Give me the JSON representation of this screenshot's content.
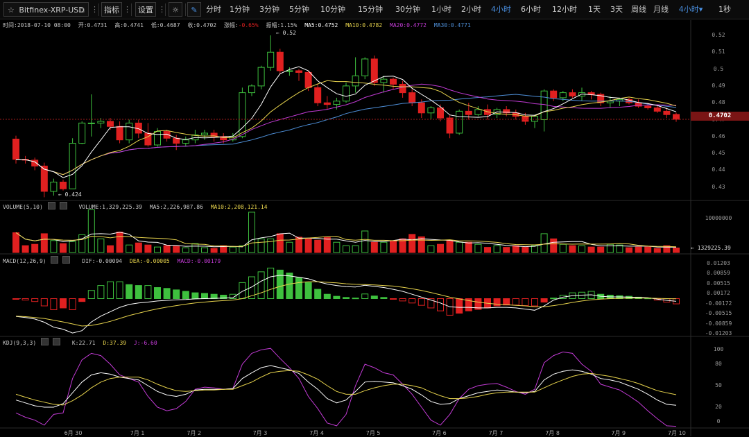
{
  "symbol": {
    "name": "Bitfinex-XRP-USD"
  },
  "toolbar": {
    "indicators": "指标",
    "settings": "设置",
    "refresh": "1秒"
  },
  "periods": [
    {
      "label": "分时",
      "active": false
    },
    {
      "label": "1分钟",
      "active": false
    },
    {
      "label": "3分钟",
      "active": false
    },
    {
      "label": "5分钟",
      "active": false
    },
    {
      "label": "10分钟",
      "active": false
    },
    {
      "label": "15分钟",
      "active": false
    },
    {
      "label": "30分钟",
      "active": false
    },
    {
      "label": "1小时",
      "active": false
    },
    {
      "label": "2小时",
      "active": false
    },
    {
      "label": "4小时",
      "active": true
    },
    {
      "label": "6小时",
      "active": false
    },
    {
      "label": "12小时",
      "active": false
    },
    {
      "label": "1天",
      "active": false
    },
    {
      "label": "3天",
      "active": false
    },
    {
      "label": "周线",
      "active": false
    },
    {
      "label": "月线",
      "active": false
    },
    {
      "label": "4小时▾",
      "active": true
    }
  ],
  "info": {
    "time": "时间:2018-07-10 08:00",
    "open": "开:0.4731",
    "high": "高:0.4741",
    "low": "低:0.4687",
    "close": "收:0.4702",
    "change_label": "涨幅:",
    "change_value": "-0.65%",
    "amplitude": "振幅:1.15%",
    "ma5": "MA5:0.4752",
    "ma10": "MA10:0.4782",
    "ma20": "MA20:0.4772",
    "ma30": "MA30:0.4771"
  },
  "volume_info": {
    "title": "VOLUME(5,10)",
    "volume": "VOLUME:1,329,225.39",
    "ma5": "MA5:2,226,987.86",
    "ma10": "MA10:2,208,121.14"
  },
  "macd_info": {
    "title": "MACD(12,26,9)",
    "dif": "DIF:-0.00094",
    "dea": "DEA:-0.00005",
    "macd": "MACD:-0.00179"
  },
  "kdj_info": {
    "title": "KDJ(9,3,3)",
    "k": "K:22.71",
    "d": "D:37.39",
    "j": "J:-6.60"
  },
  "annotations": {
    "high": "← 0.52",
    "low": "← 0.424",
    "volume_last": "← 1329225.39"
  },
  "last_price": "0.4702",
  "colors": {
    "up": "#3ec03e",
    "down": "#e02020",
    "ma5": "#ffffff",
    "ma10": "#e8d44d",
    "ma20": "#c33bd6",
    "ma30": "#4e8fd8",
    "accent": "#4a90e2"
  },
  "chart_data": [
    {
      "type": "candlestick",
      "title": "Bitfinex-XRP-USD 4小时",
      "y_ticks": [
        "0.52",
        "0.51",
        "0.5",
        "0.49",
        "0.48",
        "0.47",
        "0.46",
        "0.45",
        "0.44",
        "0.43"
      ],
      "ylim": [
        0.4225,
        0.5245
      ],
      "x_labels": [
        "6月 30",
        "7月 1",
        "7月 2",
        "7月 3",
        "7月 4",
        "7月 5",
        "7月 6",
        "7月 7",
        "7月 8",
        "7月 9",
        "7月 10"
      ],
      "x_label_index": [
        6,
        13,
        19,
        26,
        32,
        38,
        45,
        51,
        57,
        64,
        70
      ],
      "candles": [
        [
          0.4585,
          0.4605,
          0.444,
          0.4465
        ],
        [
          0.4465,
          0.4485,
          0.444,
          0.446
        ],
        [
          0.446,
          0.4475,
          0.44,
          0.4425
        ],
        [
          0.4425,
          0.4445,
          0.424,
          0.4275
        ],
        [
          0.4275,
          0.435,
          0.425,
          0.433
        ],
        [
          0.433,
          0.4345,
          0.428,
          0.429
        ],
        [
          0.429,
          0.459,
          0.429,
          0.456
        ],
        [
          0.456,
          0.469,
          0.4555,
          0.468
        ],
        [
          0.468,
          0.485,
          0.46,
          0.468
        ],
        [
          0.468,
          0.471,
          0.465,
          0.469
        ],
        [
          0.469,
          0.471,
          0.464,
          0.466
        ],
        [
          0.466,
          0.469,
          0.456,
          0.458
        ],
        [
          0.458,
          0.47,
          0.456,
          0.468
        ],
        [
          0.468,
          0.47,
          0.459,
          0.462
        ],
        [
          0.462,
          0.468,
          0.454,
          0.455
        ],
        [
          0.455,
          0.465,
          0.454,
          0.463
        ],
        [
          0.463,
          0.464,
          0.457,
          0.459
        ],
        [
          0.459,
          0.461,
          0.452,
          0.456
        ],
        [
          0.456,
          0.46,
          0.454,
          0.458
        ],
        [
          0.458,
          0.464,
          0.456,
          0.461
        ],
        [
          0.461,
          0.464,
          0.458,
          0.462
        ],
        [
          0.462,
          0.464,
          0.457,
          0.46
        ],
        [
          0.46,
          0.462,
          0.456,
          0.458
        ],
        [
          0.458,
          0.462,
          0.457,
          0.46
        ],
        [
          0.46,
          0.489,
          0.459,
          0.486
        ],
        [
          0.486,
          0.491,
          0.484,
          0.49
        ],
        [
          0.49,
          0.502,
          0.488,
          0.501
        ],
        [
          0.501,
          0.52,
          0.499,
          0.51
        ],
        [
          0.51,
          0.512,
          0.497,
          0.499
        ],
        [
          0.499,
          0.501,
          0.496,
          0.499
        ],
        [
          0.499,
          0.5,
          0.493,
          0.498
        ],
        [
          0.498,
          0.499,
          0.487,
          0.489
        ],
        [
          0.489,
          0.491,
          0.478,
          0.48
        ],
        [
          0.48,
          0.484,
          0.476,
          0.479
        ],
        [
          0.479,
          0.483,
          0.476,
          0.481
        ],
        [
          0.481,
          0.492,
          0.48,
          0.49
        ],
        [
          0.49,
          0.507,
          0.486,
          0.496
        ],
        [
          0.496,
          0.507,
          0.494,
          0.506
        ],
        [
          0.506,
          0.508,
          0.49,
          0.492
        ],
        [
          0.492,
          0.496,
          0.486,
          0.494
        ],
        [
          0.494,
          0.495,
          0.488,
          0.491
        ],
        [
          0.491,
          0.493,
          0.483,
          0.486
        ],
        [
          0.486,
          0.488,
          0.478,
          0.48
        ],
        [
          0.48,
          0.482,
          0.471,
          0.474
        ],
        [
          0.474,
          0.478,
          0.47,
          0.477
        ],
        [
          0.477,
          0.479,
          0.469,
          0.471
        ],
        [
          0.471,
          0.473,
          0.459,
          0.462
        ],
        [
          0.462,
          0.476,
          0.461,
          0.475
        ],
        [
          0.475,
          0.48,
          0.47,
          0.473
        ],
        [
          0.473,
          0.478,
          0.472,
          0.476
        ],
        [
          0.476,
          0.479,
          0.47,
          0.473
        ],
        [
          0.473,
          0.477,
          0.471,
          0.476
        ],
        [
          0.476,
          0.478,
          0.472,
          0.474
        ],
        [
          0.474,
          0.476,
          0.47,
          0.472
        ],
        [
          0.472,
          0.474,
          0.467,
          0.469
        ],
        [
          0.469,
          0.473,
          0.465,
          0.472
        ],
        [
          0.47,
          0.488,
          0.463,
          0.487
        ],
        [
          0.487,
          0.488,
          0.481,
          0.483
        ],
        [
          0.483,
          0.487,
          0.481,
          0.486
        ],
        [
          0.486,
          0.488,
          0.483,
          0.484
        ],
        [
          0.484,
          0.489,
          0.481,
          0.486
        ],
        [
          0.486,
          0.487,
          0.482,
          0.485
        ],
        [
          0.485,
          0.486,
          0.478,
          0.48
        ],
        [
          0.48,
          0.484,
          0.477,
          0.481
        ],
        [
          0.481,
          0.483,
          0.478,
          0.482
        ],
        [
          0.482,
          0.483,
          0.479,
          0.48
        ],
        [
          0.48,
          0.482,
          0.477,
          0.478
        ],
        [
          0.478,
          0.48,
          0.476,
          0.477
        ],
        [
          0.477,
          0.479,
          0.474,
          0.475
        ],
        [
          0.475,
          0.477,
          0.471,
          0.473
        ],
        [
          0.4731,
          0.4741,
          0.4687,
          0.4702
        ]
      ],
      "ma_periods": {
        "ma5": 5,
        "ma10": 10,
        "ma20": 20,
        "ma30": 30
      }
    },
    {
      "type": "bar",
      "title": "VOLUME(5,10)",
      "y_ticks": [
        "10000000"
      ],
      "ylim": [
        0,
        13000000
      ],
      "values": [
        5.8,
        2.0,
        2.4,
        5.5,
        3.5,
        2.6,
        3.2,
        5.2,
        12.5,
        4.0,
        2.0,
        6.0,
        2.2,
        2.8,
        2.2,
        1.6,
        2.0,
        1.8,
        1.4,
        2.6,
        1.4,
        1.2,
        2.0,
        1.6,
        2.0,
        11.8,
        4.0,
        4.0,
        5.5,
        3.0,
        4.5,
        4.0,
        3.6,
        4.4,
        3.0,
        2.0,
        2.0,
        6.3,
        3.0,
        3.0,
        3.3,
        4.0,
        5.3,
        4.6,
        2.0,
        2.4,
        3.5,
        3.0,
        3.0,
        2.4,
        1.5,
        2.0,
        1.5,
        2.0,
        1.5,
        2.0,
        5.5,
        4.0,
        2.4,
        2.0,
        2.0,
        1.6,
        1.6,
        2.4,
        2.2,
        1.4,
        1.6,
        1.6,
        1.2,
        2.0,
        1.33
      ]
    },
    {
      "type": "bar",
      "title": "MACD(12,26,9)",
      "y_ticks": [
        "0.01203",
        "0.00859",
        "0.00515",
        "0.00172",
        "-0.00172",
        "-0.00515",
        "-0.00859",
        "-0.01203"
      ],
      "ylim": [
        -0.0125,
        0.0125
      ],
      "macd_bars": [
        -0.0001,
        -0.0005,
        -0.001,
        -0.0025,
        -0.0038,
        -0.0032,
        -0.0038,
        -0.001,
        0.0028,
        0.0045,
        0.0058,
        0.0058,
        0.0048,
        0.0045,
        0.0045,
        0.0038,
        0.0035,
        0.003,
        0.0025,
        0.002,
        0.0018,
        0.0015,
        0.0012,
        0.0015,
        0.0055,
        0.0075,
        0.0092,
        0.0105,
        0.0098,
        0.0088,
        0.0072,
        0.0055,
        0.0032,
        0.0015,
        0.0008,
        0.0004,
        0.0002,
        0.0016,
        0.0009,
        0.0004,
        -0.0001,
        -0.0008,
        -0.0015,
        -0.0023,
        -0.0032,
        -0.0042,
        -0.0057,
        -0.005,
        -0.0042,
        -0.0037,
        -0.0032,
        -0.0025,
        -0.0022,
        -0.0022,
        -0.0024,
        -0.0025,
        -0.0012,
        0.0002,
        0.0012,
        0.002,
        0.0022,
        0.0025,
        0.0015,
        0.0012,
        0.001,
        0.0008,
        0.0005,
        0.0002,
        -0.0005,
        -0.0012,
        -0.0018
      ],
      "dif": [
        -0.0061,
        -0.0065,
        -0.007,
        -0.0081,
        -0.0098,
        -0.0105,
        -0.0118,
        -0.011,
        -0.008,
        -0.006,
        -0.0045,
        -0.003,
        -0.002,
        -0.0015,
        -0.0012,
        -0.0008,
        -0.0006,
        -0.0004,
        -0.0003,
        -0.0001,
        0.0,
        0.0001,
        0.0002,
        0.0003,
        0.0025,
        0.004,
        0.006,
        0.0075,
        0.008,
        0.0078,
        0.0073,
        0.0068,
        0.0058,
        0.005,
        0.0045,
        0.0041,
        0.004,
        0.0046,
        0.0042,
        0.0038,
        0.0032,
        0.0025,
        0.0015,
        0.0005,
        -0.0005,
        -0.0015,
        -0.0028,
        -0.003,
        -0.003,
        -0.0032,
        -0.0032,
        -0.003,
        -0.003,
        -0.0032,
        -0.0036,
        -0.004,
        -0.0025,
        -0.0005,
        0.0005,
        0.001,
        0.0012,
        0.0013,
        0.0008,
        0.0006,
        0.0006,
        0.0005,
        0.0004,
        0.0003,
        -0.0002,
        -0.0006,
        -0.00094
      ],
      "dea": [
        -0.006,
        -0.0062,
        -0.0065,
        -0.0068,
        -0.0074,
        -0.008,
        -0.0087,
        -0.0094,
        -0.0092,
        -0.0086,
        -0.0078,
        -0.0068,
        -0.0058,
        -0.005,
        -0.0042,
        -0.0035,
        -0.0029,
        -0.0024,
        -0.0019,
        -0.0015,
        -0.0012,
        -0.0009,
        -0.0007,
        -0.0005,
        0.0,
        0.001,
        0.002,
        0.0032,
        0.0042,
        0.005,
        0.0055,
        0.0058,
        0.0058,
        0.0056,
        0.0054,
        0.0051,
        0.0049,
        0.0048,
        0.0047,
        0.0045,
        0.0043,
        0.0039,
        0.0034,
        0.0028,
        0.0021,
        0.0013,
        0.0005,
        -0.0001,
        -0.0007,
        -0.0012,
        -0.0016,
        -0.0019,
        -0.0021,
        -0.0023,
        -0.0025,
        -0.0028,
        -0.0028,
        -0.0024,
        -0.0019,
        -0.0013,
        -0.0008,
        -0.0004,
        -0.0002,
        0.0,
        0.0001,
        0.0002,
        0.0002,
        0.0002,
        0.0001,
        0.0,
        -5e-05
      ]
    },
    {
      "type": "line",
      "title": "KDJ(9,3,3)",
      "y_ticks": [
        "100",
        "80",
        "50",
        "20",
        "0"
      ],
      "ylim": [
        -8,
        108
      ],
      "k": [
        30,
        26,
        22,
        20,
        20,
        25,
        40,
        55,
        65,
        68,
        66,
        62,
        60,
        58,
        50,
        42,
        37,
        35,
        38,
        44,
        45,
        45,
        45,
        46,
        60,
        68,
        75,
        78,
        75,
        72,
        67,
        55,
        45,
        32,
        26,
        30,
        42,
        55,
        56,
        55,
        54,
        50,
        45,
        37,
        28,
        24,
        25,
        32,
        36,
        40,
        42,
        44,
        43,
        41,
        40,
        42,
        58,
        66,
        70,
        72,
        70,
        66,
        60,
        58,
        55,
        50,
        45,
        38,
        30,
        24,
        22.71
      ],
      "d": [
        38,
        34,
        30,
        27,
        24,
        23,
        29,
        37,
        47,
        55,
        60,
        62,
        62,
        62,
        58,
        52,
        47,
        43,
        42,
        43,
        44,
        44,
        45,
        45,
        50,
        55,
        62,
        68,
        70,
        71,
        70,
        65,
        59,
        50,
        42,
        38,
        38,
        43,
        47,
        50,
        52,
        52,
        50,
        47,
        41,
        36,
        32,
        32,
        33,
        35,
        38,
        40,
        41,
        41,
        41,
        41,
        47,
        53,
        58,
        63,
        66,
        67,
        65,
        63,
        60,
        57,
        53,
        48,
        43,
        40,
        37.39
      ],
      "j": [
        12,
        6,
        2,
        -5,
        10,
        12,
        60,
        86,
        95,
        92,
        80,
        65,
        60,
        55,
        35,
        20,
        15,
        18,
        28,
        45,
        48,
        47,
        45,
        46,
        80,
        95,
        100,
        102,
        88,
        75,
        60,
        35,
        18,
        -2,
        -6,
        10,
        50,
        80,
        75,
        68,
        65,
        52,
        38,
        20,
        2,
        -5,
        10,
        32,
        45,
        50,
        52,
        53,
        48,
        42,
        38,
        45,
        82,
        92,
        97,
        95,
        80,
        70,
        52,
        48,
        44,
        36,
        27,
        15,
        4,
        -6,
        -6.6
      ]
    }
  ]
}
